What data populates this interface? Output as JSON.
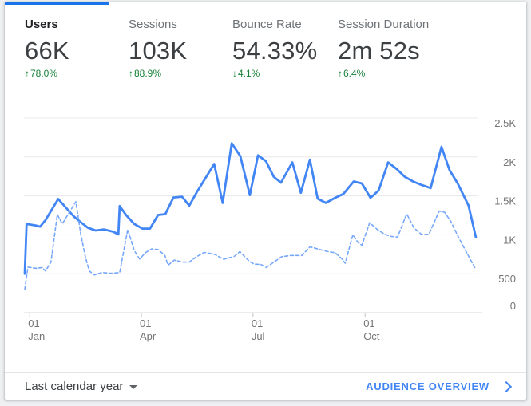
{
  "card": {
    "metrics": [
      {
        "id": "users",
        "label": "Users",
        "value": "66K",
        "arrow": "↑",
        "delta": "78.0%",
        "direction": "up",
        "active": true
      },
      {
        "id": "sessions",
        "label": "Sessions",
        "value": "103K",
        "arrow": "↑",
        "delta": "88.9%",
        "direction": "up",
        "active": false
      },
      {
        "id": "bounce-rate",
        "label": "Bounce Rate",
        "value": "54.33%",
        "arrow": "↓",
        "delta": "4.1%",
        "direction": "down",
        "active": false
      },
      {
        "id": "session-duration",
        "label": "Session Duration",
        "value": "2m 52s",
        "arrow": "↑",
        "delta": "6.4%",
        "direction": "up",
        "active": false
      }
    ],
    "footer": {
      "date_range": "Last calendar year",
      "link": "AUDIENCE OVERVIEW"
    }
  },
  "colors": {
    "tab_indicator": "#1a73e8",
    "solid_line": "#4285f4",
    "dashed_line": "#76a7fa",
    "positive_green": "#188038",
    "link_blue": "#4285f4",
    "gridline": "#e8e8e8",
    "axis_line": "#d9d9d9",
    "axis_label": "#757575"
  },
  "chart_data": {
    "type": "line",
    "title": "",
    "xlabel": "",
    "ylabel": "",
    "ylim": [
      0,
      2500
    ],
    "grid": true,
    "legend_position": "none",
    "yticks": [
      {
        "value": 2500,
        "label": "2.5K"
      },
      {
        "value": 2000,
        "label": "2K"
      },
      {
        "value": 1500,
        "label": "1.5K"
      },
      {
        "value": 1000,
        "label": "1K"
      },
      {
        "value": 500,
        "label": "500"
      },
      {
        "value": 0,
        "label": "0"
      }
    ],
    "xticks": [
      {
        "frac": 0.011,
        "line1": "01",
        "line2": "Jan"
      },
      {
        "frac": 0.258,
        "line1": "01",
        "line2": "Apr"
      },
      {
        "frac": 0.505,
        "line1": "01",
        "line2": "Jul"
      },
      {
        "frac": 0.753,
        "line1": "01",
        "line2": "Oct"
      }
    ],
    "series": [
      {
        "name": "Users — current period (weekly)",
        "style": "solid",
        "points": [
          [
            0.0,
            500
          ],
          [
            0.004,
            1140
          ],
          [
            0.025,
            1120
          ],
          [
            0.034,
            1105
          ],
          [
            0.046,
            1190
          ],
          [
            0.074,
            1460
          ],
          [
            0.108,
            1240
          ],
          [
            0.122,
            1170
          ],
          [
            0.14,
            1090
          ],
          [
            0.157,
            1055
          ],
          [
            0.175,
            1070
          ],
          [
            0.196,
            1040
          ],
          [
            0.207,
            1005
          ],
          [
            0.21,
            1370
          ],
          [
            0.224,
            1255
          ],
          [
            0.242,
            1140
          ],
          [
            0.26,
            1080
          ],
          [
            0.277,
            1080
          ],
          [
            0.295,
            1255
          ],
          [
            0.311,
            1265
          ],
          [
            0.329,
            1480
          ],
          [
            0.348,
            1490
          ],
          [
            0.364,
            1375
          ],
          [
            0.382,
            1560
          ],
          [
            0.419,
            1910
          ],
          [
            0.438,
            1410
          ],
          [
            0.458,
            2175
          ],
          [
            0.477,
            2010
          ],
          [
            0.498,
            1510
          ],
          [
            0.516,
            2020
          ],
          [
            0.534,
            1945
          ],
          [
            0.551,
            1745
          ],
          [
            0.567,
            1670
          ],
          [
            0.592,
            1930
          ],
          [
            0.611,
            1540
          ],
          [
            0.631,
            1965
          ],
          [
            0.648,
            1465
          ],
          [
            0.666,
            1410
          ],
          [
            0.687,
            1475
          ],
          [
            0.705,
            1525
          ],
          [
            0.728,
            1685
          ],
          [
            0.746,
            1660
          ],
          [
            0.765,
            1475
          ],
          [
            0.783,
            1570
          ],
          [
            0.804,
            1930
          ],
          [
            0.823,
            1845
          ],
          [
            0.841,
            1745
          ],
          [
            0.859,
            1685
          ],
          [
            0.876,
            1645
          ],
          [
            0.898,
            1600
          ],
          [
            0.922,
            2130
          ],
          [
            0.94,
            1830
          ],
          [
            0.958,
            1660
          ],
          [
            0.982,
            1375
          ],
          [
            0.998,
            970
          ]
        ]
      },
      {
        "name": "Users — previous period (weekly)",
        "style": "dashed",
        "points": [
          [
            0.0,
            300
          ],
          [
            0.007,
            585
          ],
          [
            0.025,
            570
          ],
          [
            0.039,
            580
          ],
          [
            0.046,
            535
          ],
          [
            0.058,
            650
          ],
          [
            0.072,
            1260
          ],
          [
            0.083,
            1140
          ],
          [
            0.113,
            1425
          ],
          [
            0.124,
            1005
          ],
          [
            0.134,
            720
          ],
          [
            0.143,
            535
          ],
          [
            0.154,
            485
          ],
          [
            0.171,
            515
          ],
          [
            0.193,
            505
          ],
          [
            0.21,
            515
          ],
          [
            0.228,
            1070
          ],
          [
            0.242,
            800
          ],
          [
            0.254,
            690
          ],
          [
            0.268,
            775
          ],
          [
            0.281,
            820
          ],
          [
            0.295,
            810
          ],
          [
            0.31,
            735
          ],
          [
            0.317,
            610
          ],
          [
            0.331,
            675
          ],
          [
            0.348,
            650
          ],
          [
            0.364,
            650
          ],
          [
            0.378,
            710
          ],
          [
            0.397,
            775
          ],
          [
            0.42,
            750
          ],
          [
            0.44,
            685
          ],
          [
            0.463,
            720
          ],
          [
            0.476,
            785
          ],
          [
            0.497,
            660
          ],
          [
            0.507,
            625
          ],
          [
            0.523,
            618
          ],
          [
            0.534,
            580
          ],
          [
            0.569,
            720
          ],
          [
            0.59,
            735
          ],
          [
            0.613,
            735
          ],
          [
            0.631,
            845
          ],
          [
            0.648,
            820
          ],
          [
            0.67,
            785
          ],
          [
            0.687,
            770
          ],
          [
            0.701,
            695
          ],
          [
            0.709,
            635
          ],
          [
            0.726,
            1000
          ],
          [
            0.737,
            905
          ],
          [
            0.746,
            865
          ],
          [
            0.763,
            1155
          ],
          [
            0.781,
            1065
          ],
          [
            0.797,
            1005
          ],
          [
            0.811,
            980
          ],
          [
            0.825,
            970
          ],
          [
            0.845,
            1270
          ],
          [
            0.861,
            1090
          ],
          [
            0.878,
            1005
          ],
          [
            0.894,
            1005
          ],
          [
            0.917,
            1305
          ],
          [
            0.929,
            1290
          ],
          [
            0.943,
            1170
          ],
          [
            0.958,
            990
          ],
          [
            0.975,
            800
          ],
          [
            0.997,
            565
          ]
        ]
      }
    ]
  }
}
